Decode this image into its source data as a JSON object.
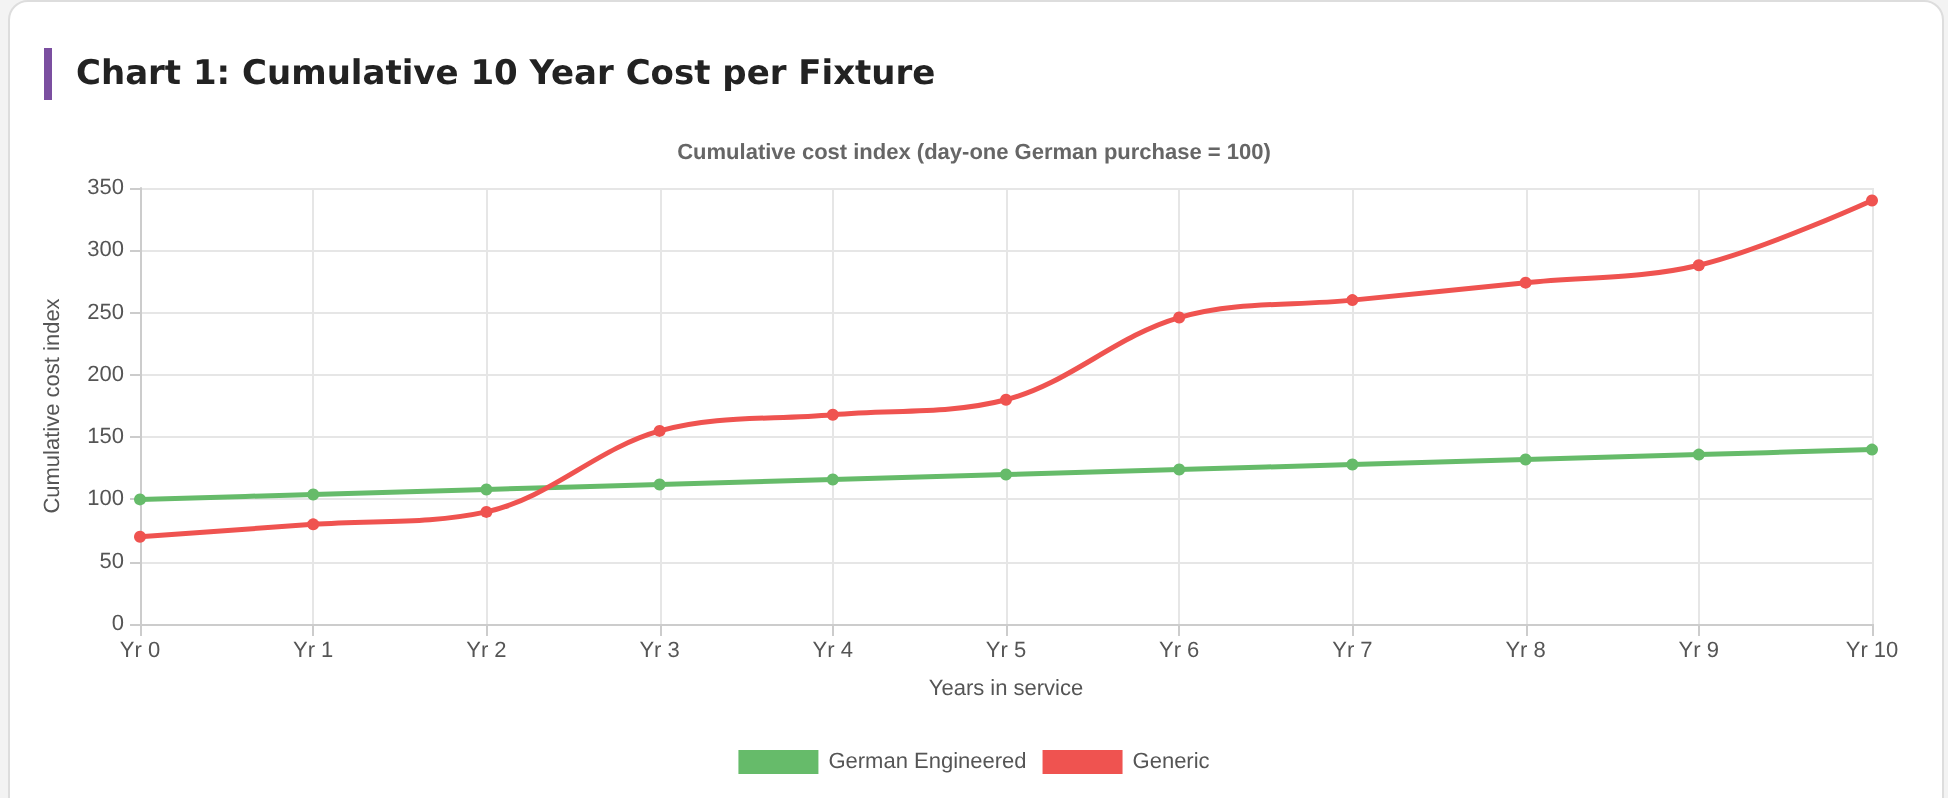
{
  "chart_data": {
    "type": "line",
    "title": "Chart 1: Cumulative 10 Year Cost per Fixture",
    "subtitle": "Cumulative cost index (day-one German purchase = 100)",
    "xlabel": "Years in service",
    "ylabel": "Cumulative cost index",
    "categories": [
      "Yr 0",
      "Yr 1",
      "Yr 2",
      "Yr 3",
      "Yr 4",
      "Yr 5",
      "Yr 6",
      "Yr 7",
      "Yr 8",
      "Yr 9",
      "Yr 10"
    ],
    "series": [
      {
        "name": "German Engineered",
        "color": "#66bb6a",
        "values": [
          100,
          104,
          108,
          112,
          116,
          120,
          124,
          128,
          132,
          136,
          140
        ]
      },
      {
        "name": "Generic",
        "color": "#ef5350",
        "values": [
          70,
          80,
          90,
          155,
          168,
          180,
          246,
          260,
          274,
          288,
          340
        ]
      }
    ],
    "ylim": [
      0,
      350
    ],
    "yticks": [
      0,
      50,
      100,
      150,
      200,
      250,
      300,
      350
    ],
    "grid": true,
    "legend": "bottom",
    "marker": "circle",
    "line_style": "solid"
  }
}
